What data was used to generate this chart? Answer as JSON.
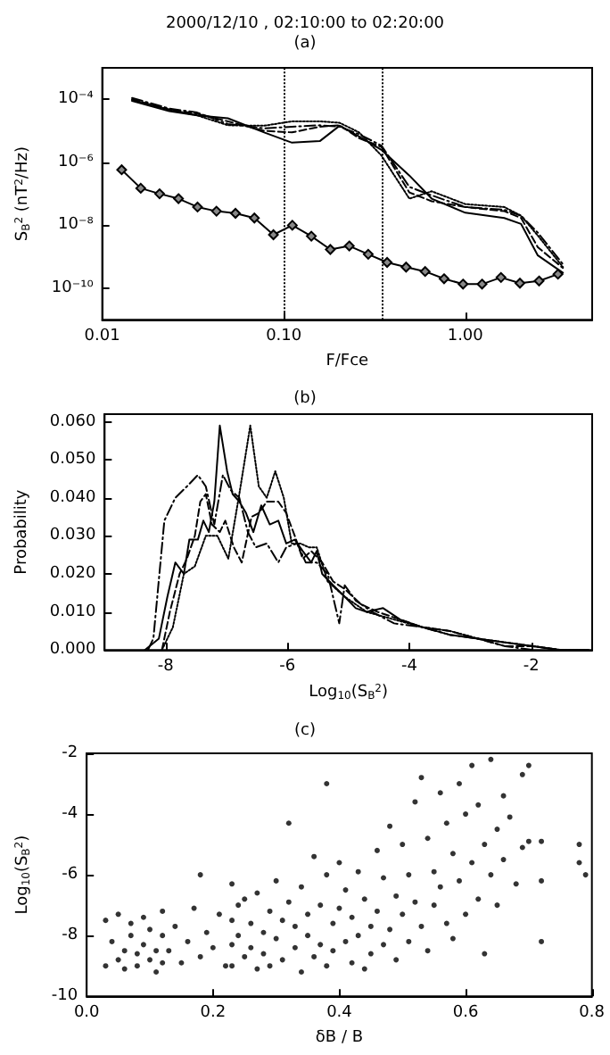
{
  "chart_data": [
    {
      "type": "line",
      "title": "2000/12/10 , 02:10:00 to 02:20:00",
      "subtitle": "(a)",
      "xlabel": "F/Fce",
      "ylabel": "S$_{B}$$^{2}$ (nT$^{2}$/Hz)",
      "log": "xy",
      "xlim": [
        0.01,
        5
      ],
      "ylim": [
        1e-11,
        0.001
      ],
      "xticks": [
        {
          "value": 0.01,
          "label": "0.01"
        },
        {
          "value": 0.1,
          "label": "0.10"
        },
        {
          "value": 1,
          "label": "1.00"
        }
      ],
      "yticks": [
        {
          "value": 1e-10,
          "label": "10⁻¹⁰"
        },
        {
          "value": 1e-08,
          "label": "10⁻⁸"
        },
        {
          "value": 1e-06,
          "label": "10⁻⁶"
        },
        {
          "value": 0.0001,
          "label": "10⁻⁴"
        }
      ],
      "ref_lines": [
        {
          "axis": "x",
          "value": 0.1,
          "line_style": "dotted"
        },
        {
          "axis": "x",
          "value": 0.35,
          "line_style": "dotted"
        }
      ],
      "series": [
        {
          "color": "#000000",
          "line_style": "solid",
          "marker": "none",
          "x": [
            0.0146,
            0.0234,
            0.0333,
            0.0492,
            0.078,
            0.111,
            0.158,
            0.203,
            0.26,
            0.345,
            0.492,
            0.653,
            1.0,
            1.64,
            2.03,
            2.51,
            3.45
          ],
          "values": [
            8.9e-05,
            4.2e-05,
            3.1e-05,
            2.5e-05,
            8.9e-06,
            4.2e-06,
            4.7e-06,
            1.45e-05,
            6.6e-06,
            2.5e-06,
            3.8e-07,
            7e-08,
            2.5e-08,
            1.7e-08,
            1.1e-08,
            1.1e-09,
            3.1e-10
          ]
        },
        {
          "color": "#000000",
          "line_style": "dashed",
          "marker": "none",
          "x": [
            0.0146,
            0.0234,
            0.0333,
            0.0492,
            0.078,
            0.111,
            0.158,
            0.203,
            0.26,
            0.345,
            0.492,
            0.653,
            1.0,
            1.64,
            2.03,
            2.51,
            3.45
          ],
          "values": [
            0.0001,
            4.7e-05,
            3.5e-05,
            2e-05,
            1e-05,
            8.9e-06,
            1.35e-05,
            1.5e-05,
            5.8e-06,
            3.1e-06,
            1.1e-07,
            5.8e-08,
            3.8e-08,
            2.8e-08,
            1.7e-08,
            2e-09,
            4.4e-10
          ]
        },
        {
          "color": "#000000",
          "line_style": "dashdot",
          "marker": "none",
          "x": [
            0.0146,
            0.0234,
            0.0333,
            0.0492,
            0.078,
            0.111,
            0.158,
            0.203,
            0.26,
            0.345,
            0.492,
            0.653,
            1.0,
            1.64,
            2.03,
            2.51,
            3.45
          ],
          "values": [
            0.00011,
            5.1e-05,
            3.8e-05,
            1.65e-05,
            1.2e-05,
            1.35e-05,
            1.5e-05,
            1.35e-05,
            7.8e-06,
            3.4e-06,
            1.65e-07,
            8.9e-08,
            3.8e-08,
            3.1e-08,
            2e-08,
            5.8e-09,
            5.8e-10
          ]
        },
        {
          "color": "#000000",
          "line_style": "dotted",
          "marker": "none",
          "x": [
            0.0146,
            0.0234,
            0.0333,
            0.0492,
            0.078,
            0.111,
            0.158,
            0.203,
            0.26,
            0.345,
            0.492,
            0.653,
            1.0,
            1.64,
            2.03,
            2.51,
            3.45
          ],
          "values": [
            9.5e-05,
            4.7e-05,
            3.1e-05,
            1.5e-05,
            1.45e-05,
            2e-05,
            2e-05,
            1.8e-05,
            8.9e-06,
            1.65e-06,
            7e-08,
            1.2e-07,
            4.7e-08,
            3.8e-08,
            2e-08,
            4.7e-09,
            4.7e-10
          ]
        },
        {
          "color": "#000000",
          "line_style": "solid",
          "marker": "diamond",
          "x": [
            0.0128,
            0.0163,
            0.0207,
            0.0263,
            0.0335,
            0.0426,
            0.0542,
            0.0689,
            0.0877,
            0.1115,
            0.1419,
            0.1805,
            0.2296,
            0.292,
            0.371,
            0.472,
            0.601,
            0.764,
            0.972,
            1.237,
            1.573,
            2.0,
            2.55,
            3.24
          ],
          "values": [
            5.8e-07,
            1.5e-07,
            1e-07,
            7e-08,
            3.8e-08,
            2.8e-08,
            2.4e-08,
            1.7e-08,
            5e-09,
            1e-08,
            4.5e-09,
            1.7e-09,
            2.2e-09,
            1.2e-09,
            6.6e-10,
            4.7e-10,
            3.4e-10,
            2e-10,
            1.35e-10,
            1.35e-10,
            2.2e-10,
            1.45e-10,
            1.7e-10,
            2.8e-10
          ]
        }
      ]
    },
    {
      "type": "line",
      "title": "(b)",
      "xlabel": "Log$_{10}$(S$_{B}$$^{2}$)",
      "ylabel": "Probability",
      "xlim": [
        -9,
        -1
      ],
      "ylim": [
        0,
        0.062
      ],
      "xticks": [
        -8,
        -6,
        -4,
        -2
      ],
      "yticks": [
        {
          "value": 0,
          "label": "0.000"
        },
        {
          "value": 0.01,
          "label": "0.010"
        },
        {
          "value": 0.02,
          "label": "0.020"
        },
        {
          "value": 0.03,
          "label": "0.030"
        },
        {
          "value": 0.04,
          "label": "0.040"
        },
        {
          "value": 0.05,
          "label": "0.050"
        },
        {
          "value": 0.06,
          "label": "0.060"
        }
      ],
      "series": [
        {
          "color": "#000000",
          "line_style": "solid",
          "x": [
            -8.34,
            -8.11,
            -7.97,
            -7.84,
            -7.7,
            -7.61,
            -7.47,
            -7.38,
            -7.29,
            -7.2,
            -7.11,
            -6.99,
            -6.9,
            -6.79,
            -6.68,
            -6.56,
            -6.43,
            -6.29,
            -6.15,
            -6.02,
            -5.88,
            -5.75,
            -5.61,
            -5.52,
            -5.43,
            -5.25,
            -5.06,
            -4.88,
            -4.7,
            -4.43,
            -4.15,
            -3.79,
            -3.34,
            -2.88,
            -2.43,
            -1.97,
            -1.52,
            -1.06
          ],
          "values": [
            0,
            0.003,
            0.014,
            0.023,
            0.02,
            0.029,
            0.029,
            0.034,
            0.031,
            0.039,
            0.059,
            0.047,
            0.041,
            0.039,
            0.036,
            0.031,
            0.038,
            0.033,
            0.034,
            0.028,
            0.029,
            0.026,
            0.023,
            0.026,
            0.02,
            0.017,
            0.014,
            0.011,
            0.01,
            0.011,
            0.008,
            0.006,
            0.004,
            0.003,
            0.002,
            0.001,
            0,
            0
          ]
        },
        {
          "color": "#000000",
          "line_style": "dashed",
          "x": [
            -8.06,
            -7.93,
            -7.77,
            -7.65,
            -7.52,
            -7.43,
            -7.34,
            -7.24,
            -7.11,
            -7.02,
            -6.88,
            -6.75,
            -6.59,
            -6.47,
            -6.34,
            -6.15,
            -6.02,
            -5.88,
            -5.75,
            -5.61,
            -5.43,
            -5.25,
            -5.06,
            -4.79,
            -4.52,
            -4.15,
            -3.79,
            -3.34,
            -2.88,
            -2.43,
            -1.97,
            -1.52
          ],
          "values": [
            0,
            0.01,
            0.02,
            0.024,
            0.03,
            0.039,
            0.041,
            0.033,
            0.031,
            0.034,
            0.027,
            0.023,
            0.035,
            0.036,
            0.039,
            0.039,
            0.036,
            0.03,
            0.024,
            0.026,
            0.023,
            0.018,
            0.016,
            0.012,
            0.01,
            0.008,
            0.006,
            0.005,
            0.003,
            0.001,
            0.001,
            0
          ]
        },
        {
          "color": "#000000",
          "line_style": "dashdot",
          "x": [
            -8.29,
            -8.2,
            -8.02,
            -7.84,
            -7.65,
            -7.47,
            -7.34,
            -7.2,
            -7.06,
            -6.93,
            -6.79,
            -6.65,
            -6.52,
            -6.34,
            -6.15,
            -6.02,
            -5.84,
            -5.7,
            -5.52,
            -5.34,
            -5.15,
            -5.06,
            -4.88,
            -4.61,
            -4.25,
            -3.79,
            -3.34,
            -2.88,
            -2.43,
            -1.97
          ],
          "values": [
            0,
            0.003,
            0.034,
            0.04,
            0.043,
            0.046,
            0.043,
            0.033,
            0.046,
            0.042,
            0.04,
            0.031,
            0.027,
            0.028,
            0.023,
            0.027,
            0.028,
            0.023,
            0.023,
            0.02,
            0.007,
            0.017,
            0.013,
            0.01,
            0.007,
            0.006,
            0.004,
            0.003,
            0.001,
            0
          ]
        },
        {
          "color": "#000000",
          "line_style": "dotted",
          "x": [
            -8.06,
            -7.88,
            -7.7,
            -7.52,
            -7.34,
            -7.15,
            -6.97,
            -6.79,
            -6.61,
            -6.47,
            -6.34,
            -6.2,
            -6.06,
            -5.93,
            -5.79,
            -5.65,
            -5.52,
            -5.34,
            -5.06,
            -4.7,
            -4.25,
            -3.79,
            -3.34,
            -2.88,
            -2.43,
            -1.97,
            -1.52,
            -1.06
          ],
          "values": [
            0,
            0.006,
            0.02,
            0.022,
            0.03,
            0.03,
            0.024,
            0.041,
            0.059,
            0.043,
            0.04,
            0.047,
            0.04,
            0.028,
            0.028,
            0.027,
            0.027,
            0.018,
            0.014,
            0.01,
            0.008,
            0.006,
            0.005,
            0.003,
            0.002,
            0.001,
            0,
            0
          ]
        }
      ]
    },
    {
      "type": "scatter",
      "title": "(c)",
      "xlabel": "δB / B",
      "ylabel": "Log$_{10}$(S$_{B}$$^{2}$)",
      "marker": "circle",
      "xlim": [
        0,
        0.8
      ],
      "ylim": [
        -10,
        -2
      ],
      "xticks": [
        {
          "value": 0,
          "label": "0.0"
        },
        {
          "value": 0.2,
          "label": "0.2"
        },
        {
          "value": 0.4,
          "label": "0.4"
        },
        {
          "value": 0.6,
          "label": "0.6"
        },
        {
          "value": 0.8,
          "label": "0.8"
        }
      ],
      "yticks": [
        -10,
        -8,
        -6,
        -4,
        -2
      ],
      "series": [
        {
          "color": "#000000",
          "x": [
            0.03,
            0.03,
            0.04,
            0.05,
            0.05,
            0.06,
            0.06,
            0.07,
            0.07,
            0.08,
            0.08,
            0.09,
            0.09,
            0.1,
            0.1,
            0.11,
            0.11,
            0.12,
            0.12,
            0.12,
            0.13,
            0.14,
            0.15,
            0.16,
            0.17,
            0.18,
            0.18,
            0.19,
            0.2,
            0.21,
            0.22,
            0.23,
            0.23,
            0.23,
            0.23,
            0.24,
            0.24,
            0.25,
            0.25,
            0.26,
            0.26,
            0.27,
            0.27,
            0.28,
            0.28,
            0.29,
            0.29,
            0.3,
            0.3,
            0.31,
            0.31,
            0.32,
            0.32,
            0.33,
            0.33,
            0.34,
            0.34,
            0.35,
            0.35,
            0.36,
            0.36,
            0.37,
            0.37,
            0.38,
            0.38,
            0.38,
            0.39,
            0.39,
            0.4,
            0.4,
            0.41,
            0.41,
            0.42,
            0.42,
            0.43,
            0.43,
            0.44,
            0.44,
            0.45,
            0.45,
            0.46,
            0.46,
            0.47,
            0.47,
            0.48,
            0.48,
            0.49,
            0.49,
            0.5,
            0.5,
            0.51,
            0.51,
            0.52,
            0.52,
            0.53,
            0.53,
            0.54,
            0.54,
            0.55,
            0.55,
            0.56,
            0.56,
            0.57,
            0.57,
            0.58,
            0.58,
            0.59,
            0.59,
            0.6,
            0.6,
            0.61,
            0.61,
            0.62,
            0.62,
            0.63,
            0.63,
            0.64,
            0.64,
            0.65,
            0.65,
            0.66,
            0.66,
            0.67,
            0.68,
            0.69,
            0.69,
            0.7,
            0.7,
            0.72,
            0.72,
            0.72,
            0.78,
            0.79,
            0.78
          ],
          "values": [
            -7.5,
            -9.0,
            -8.2,
            -7.3,
            -8.8,
            -8.5,
            -9.1,
            -7.6,
            -8.0,
            -8.6,
            -9.0,
            -7.4,
            -8.3,
            -8.8,
            -7.8,
            -8.5,
            -9.2,
            -7.2,
            -8.0,
            -8.9,
            -8.5,
            -7.7,
            -8.9,
            -8.2,
            -7.1,
            -6.0,
            -8.7,
            -7.9,
            -8.4,
            -7.3,
            -9.0,
            -6.3,
            -7.5,
            -8.3,
            -9.0,
            -7.0,
            -8.0,
            -8.7,
            -6.8,
            -7.6,
            -8.4,
            -9.1,
            -6.6,
            -7.9,
            -8.6,
            -7.2,
            -9.0,
            -6.2,
            -8.1,
            -7.5,
            -8.8,
            -4.3,
            -6.9,
            -8.4,
            -7.7,
            -9.2,
            -6.4,
            -8.0,
            -7.3,
            -5.4,
            -8.7,
            -7.0,
            -8.3,
            -3.0,
            -6.0,
            -9.0,
            -7.6,
            -8.5,
            -5.6,
            -7.1,
            -8.2,
            -6.5,
            -8.9,
            -7.4,
            -5.9,
            -8.0,
            -6.8,
            -9.1,
            -7.7,
            -8.6,
            -5.2,
            -7.2,
            -8.3,
            -6.1,
            -4.4,
            -7.8,
            -6.7,
            -8.8,
            -5.0,
            -7.3,
            -6.0,
            -8.2,
            -3.6,
            -6.9,
            -2.8,
            -7.7,
            -4.8,
            -8.5,
            -5.9,
            -7.0,
            -3.3,
            -6.4,
            -4.3,
            -7.6,
            -5.3,
            -8.1,
            -3.0,
            -6.2,
            -4.0,
            -7.3,
            -2.4,
            -5.6,
            -6.8,
            -3.7,
            -5.0,
            -8.6,
            -2.2,
            -6.0,
            -4.5,
            -7.0,
            -3.4,
            -5.5,
            -4.1,
            -6.3,
            -2.7,
            -5.1,
            -4.9,
            -2.4,
            -6.2,
            -8.2,
            -4.9,
            -5.6,
            -6.0,
            -5.0
          ]
        }
      ]
    }
  ]
}
